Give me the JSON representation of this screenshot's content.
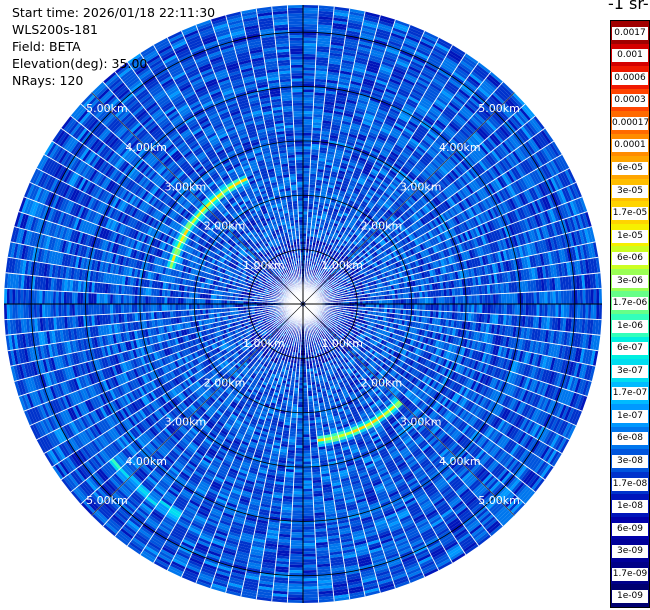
{
  "header": {
    "start_time": "Start time: 2026/01/18 22:11:30",
    "instrument": "WLS200s-181",
    "field": "Field: BETA",
    "elevation": "Elevation(deg): 35.00",
    "nrays": "NRays: 120"
  },
  "colorbar": {
    "title": "-1 sr-",
    "labels": [
      "0.0017",
      "0.001",
      "0.0006",
      "0.0003",
      "0.00017",
      "0.0001",
      "6e-05",
      "3e-05",
      "1.7e-05",
      "1e-05",
      "6e-06",
      "3e-06",
      "1.7e-06",
      "1e-06",
      "6e-07",
      "3e-07",
      "1.7e-07",
      "1e-07",
      "6e-08",
      "3e-08",
      "1.7e-08",
      "1e-08",
      "6e-09",
      "3e-09",
      "1.7e-09",
      "1e-09"
    ],
    "colors": [
      "#a00000",
      "#d40000",
      "#f01800",
      "#ff4400",
      "#ff6a00",
      "#ff8c00",
      "#ffa500",
      "#ffbe00",
      "#ffd400",
      "#f6f000",
      "#ccff22",
      "#99ff55",
      "#66ff88",
      "#33ffbb",
      "#00f0e0",
      "#00ddf0",
      "#00bbff",
      "#0099ff",
      "#0077ee",
      "#0055dd",
      "#0033cc",
      "#0015bb",
      "#0000aa",
      "#000099",
      "#000088",
      "#000070"
    ]
  },
  "chart_data": {
    "type": "heatmap",
    "plot_kind": "PPI polar scan",
    "field": "BETA",
    "elevation_deg": 35.0,
    "n_rays": 120,
    "range_unit": "km",
    "max_range_km": 5.5,
    "range_rings_km": [
      1,
      2,
      3,
      4,
      5
    ],
    "ring_labels": [
      "1.00km",
      "2.00km",
      "3.00km",
      "4.00km",
      "5.00km"
    ],
    "colorscale": "log",
    "value_range": [
      1e-09,
      0.0017
    ],
    "background_value": 3e-08,
    "features": [
      {
        "description": "enhanced arc",
        "range_km": 2.5,
        "azimuth_deg": [
          -75,
          -25
        ],
        "peak_value": 6e-06
      },
      {
        "description": "enhanced arc",
        "range_km": 2.5,
        "azimuth_deg": [
          135,
          175
        ],
        "peak_value": 6e-06
      },
      {
        "description": "weak arc",
        "range_km": 4.5,
        "azimuth_deg": [
          -150,
          -130
        ],
        "peak_value": 3e-07
      }
    ]
  }
}
